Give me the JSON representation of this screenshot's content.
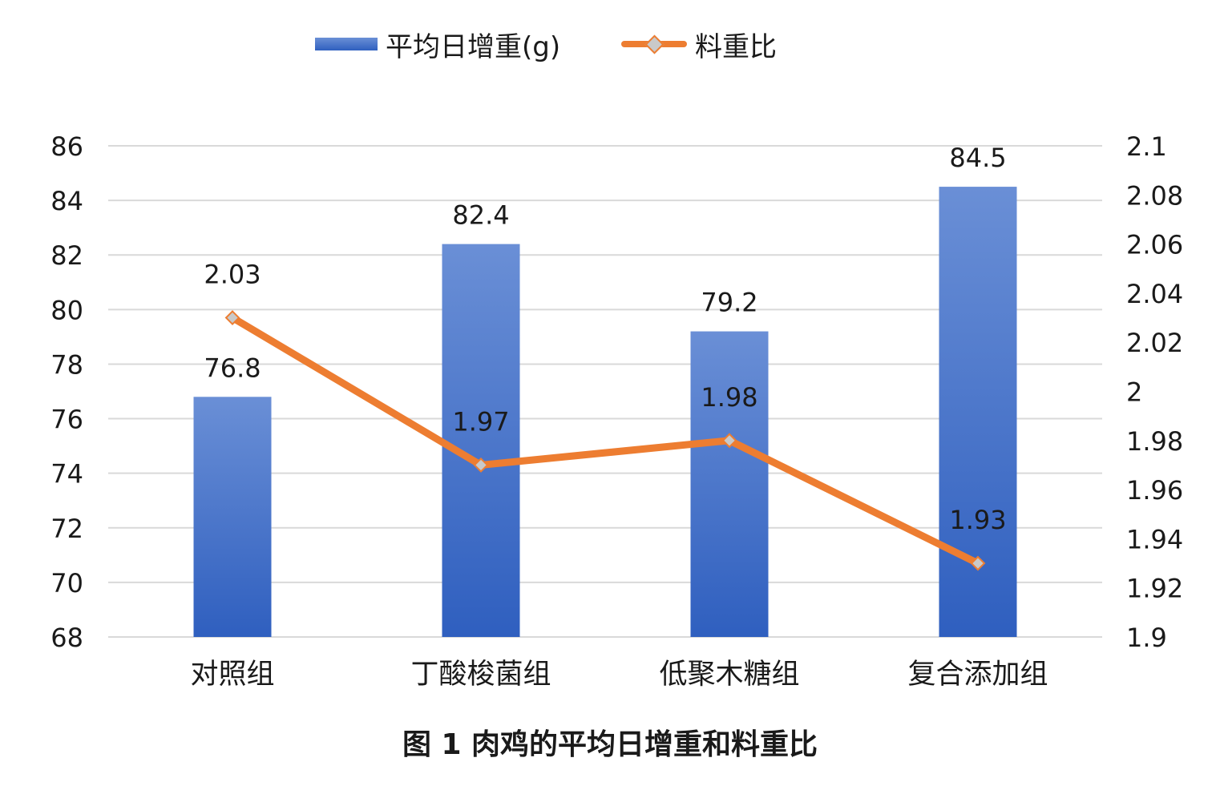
{
  "chart_data": {
    "type": "bar",
    "title": "图 1 肉鸡的平均日增重和料重比",
    "categories": [
      "对照组",
      "丁酸梭菌组",
      "低聚木糖组",
      "复合添加组"
    ],
    "series": [
      {
        "name": "平均日增重(g)",
        "type": "bar",
        "axis": "left",
        "values": [
          76.8,
          82.4,
          79.2,
          84.5
        ],
        "labels": [
          "76.8",
          "82.4",
          "79.2",
          "84.5"
        ]
      },
      {
        "name": "料重比",
        "type": "line",
        "axis": "right",
        "values": [
          2.03,
          1.97,
          1.98,
          1.93
        ],
        "labels": [
          "2.03",
          "1.97",
          "1.98",
          "1.93"
        ]
      }
    ],
    "y_left": {
      "min": 68,
      "max": 86,
      "ticks": [
        "68",
        "70",
        "72",
        "74",
        "76",
        "78",
        "80",
        "82",
        "84",
        "86"
      ]
    },
    "y_right": {
      "min": 1.9,
      "max": 2.1,
      "ticks": [
        "1.9",
        "1.92",
        "1.94",
        "1.96",
        "1.98",
        "2",
        "2.02",
        "2.04",
        "2.06",
        "2.08",
        "2.1"
      ]
    },
    "grid": true,
    "legend_position": "top-center",
    "colors": {
      "bar_top": "#6a8fd6",
      "bar_bottom": "#2f5fbf",
      "line": "#ed7d31",
      "marker": "#c9c9c9",
      "grid": "#d9d9d9"
    }
  },
  "legend": {
    "bar_label": "平均日增重(g)",
    "line_label": "料重比"
  },
  "caption": "图 1 肉鸡的平均日增重和料重比"
}
